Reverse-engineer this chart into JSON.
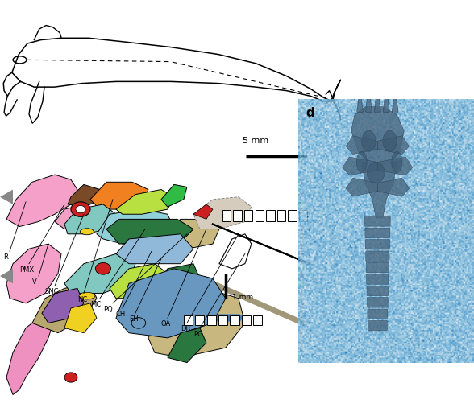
{
  "fig_width": 5.88,
  "fig_height": 5.12,
  "dpi": 100,
  "bg_color": "#ffffff",
  "label_fontsize": 6.0,
  "scale_bar_5mm": "5 mm",
  "scale_bar_1mm": "1 mm",
  "panel_d_label": "d",
  "colors": {
    "pink_main": "#F4A0C8",
    "pink_pmx": "#F0A0C4",
    "pink_lower": "#F4A0C8",
    "pink_bottom_girdle": "#EE90C0",
    "brown": "#7A4A28",
    "orange": "#F08020",
    "teal": "#80C8C0",
    "cyan_lt": "#90D0D8",
    "blue_lt": "#90B8D8",
    "blue_med": "#6898C0",
    "blue_dark": "#4878A8",
    "green_yelgr": "#B8E040",
    "green_bright": "#30BB44",
    "green_dk": "#2A7840",
    "green_lower": "#2A7840",
    "yellow": "#F0D020",
    "red": "#CC2020",
    "tan": "#C8B880",
    "tan2": "#B8A870",
    "purple": "#9060B0",
    "gray_lt": "#C8C8B8",
    "khaki": "#C8B870",
    "white": "#FFFFFF",
    "fossil_bg": "#A8BED0"
  }
}
